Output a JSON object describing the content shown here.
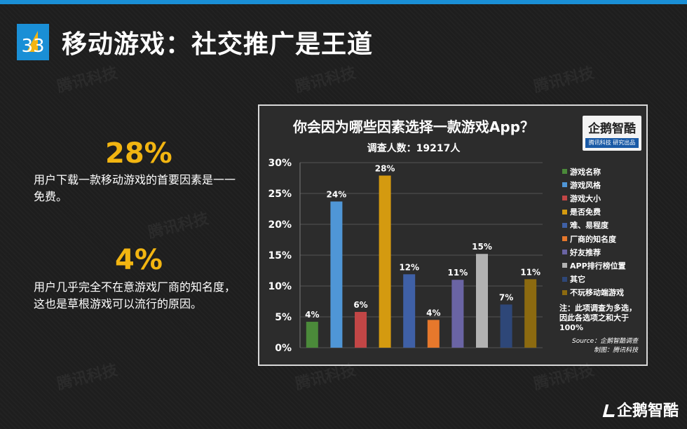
{
  "page_number": "33",
  "page_title": "移动游戏：社交推广是王道",
  "stats": [
    {
      "value": "28%",
      "text": "用户下载一款移动游戏的首要因素是一一免费。"
    },
    {
      "value": "4%",
      "text": "用户几乎完全不在意游戏厂商的知名度，这也是草根游戏可以流行的原因。"
    }
  ],
  "watermark": "腾讯科技",
  "brand": {
    "name": "企鹅智酷",
    "tag": "腾讯科技 研究出品"
  },
  "footer_logo": "企鹅智酷",
  "chart_data": {
    "type": "bar",
    "title": "你会因为哪些因素选择一款游戏App？",
    "subtitle": "调查人数：19217人",
    "categories": [
      "游戏名称",
      "游戏风格",
      "游戏大小",
      "是否免费",
      "难、易程度",
      "厂商的知名度",
      "好友推荐",
      "APP排行榜位置",
      "其它",
      "不玩移动端游戏"
    ],
    "values": [
      4,
      24,
      6,
      28,
      12,
      4,
      11,
      15,
      7,
      11
    ],
    "value_labels": [
      "4%",
      "24%",
      "6%",
      "28%",
      "12%",
      "4%",
      "11%",
      "15%",
      "7%",
      "11%"
    ],
    "drawn_values": [
      4.2,
      23.7,
      5.8,
      27.9,
      11.9,
      4.5,
      11.0,
      15.2,
      7.0,
      11.1
    ],
    "colors": [
      "#4b8a3a",
      "#4f96d6",
      "#c24646",
      "#d49a10",
      "#3f60a6",
      "#e6782c",
      "#6a64a4",
      "#b2b2b2",
      "#2e4778",
      "#8c6a10"
    ],
    "ylim": [
      0,
      30
    ],
    "y_ticks": [
      0,
      5,
      10,
      15,
      20,
      25,
      30
    ],
    "y_tick_labels": [
      "0%",
      "5%",
      "10%",
      "15%",
      "20%",
      "25%",
      "30%"
    ],
    "grid": true,
    "legend_position": "right",
    "note": "注：此项调查为多选，因此各选项之和大于100%",
    "source_lines": [
      "Source：企鹅智酷调查",
      "制图：腾讯科技"
    ]
  }
}
